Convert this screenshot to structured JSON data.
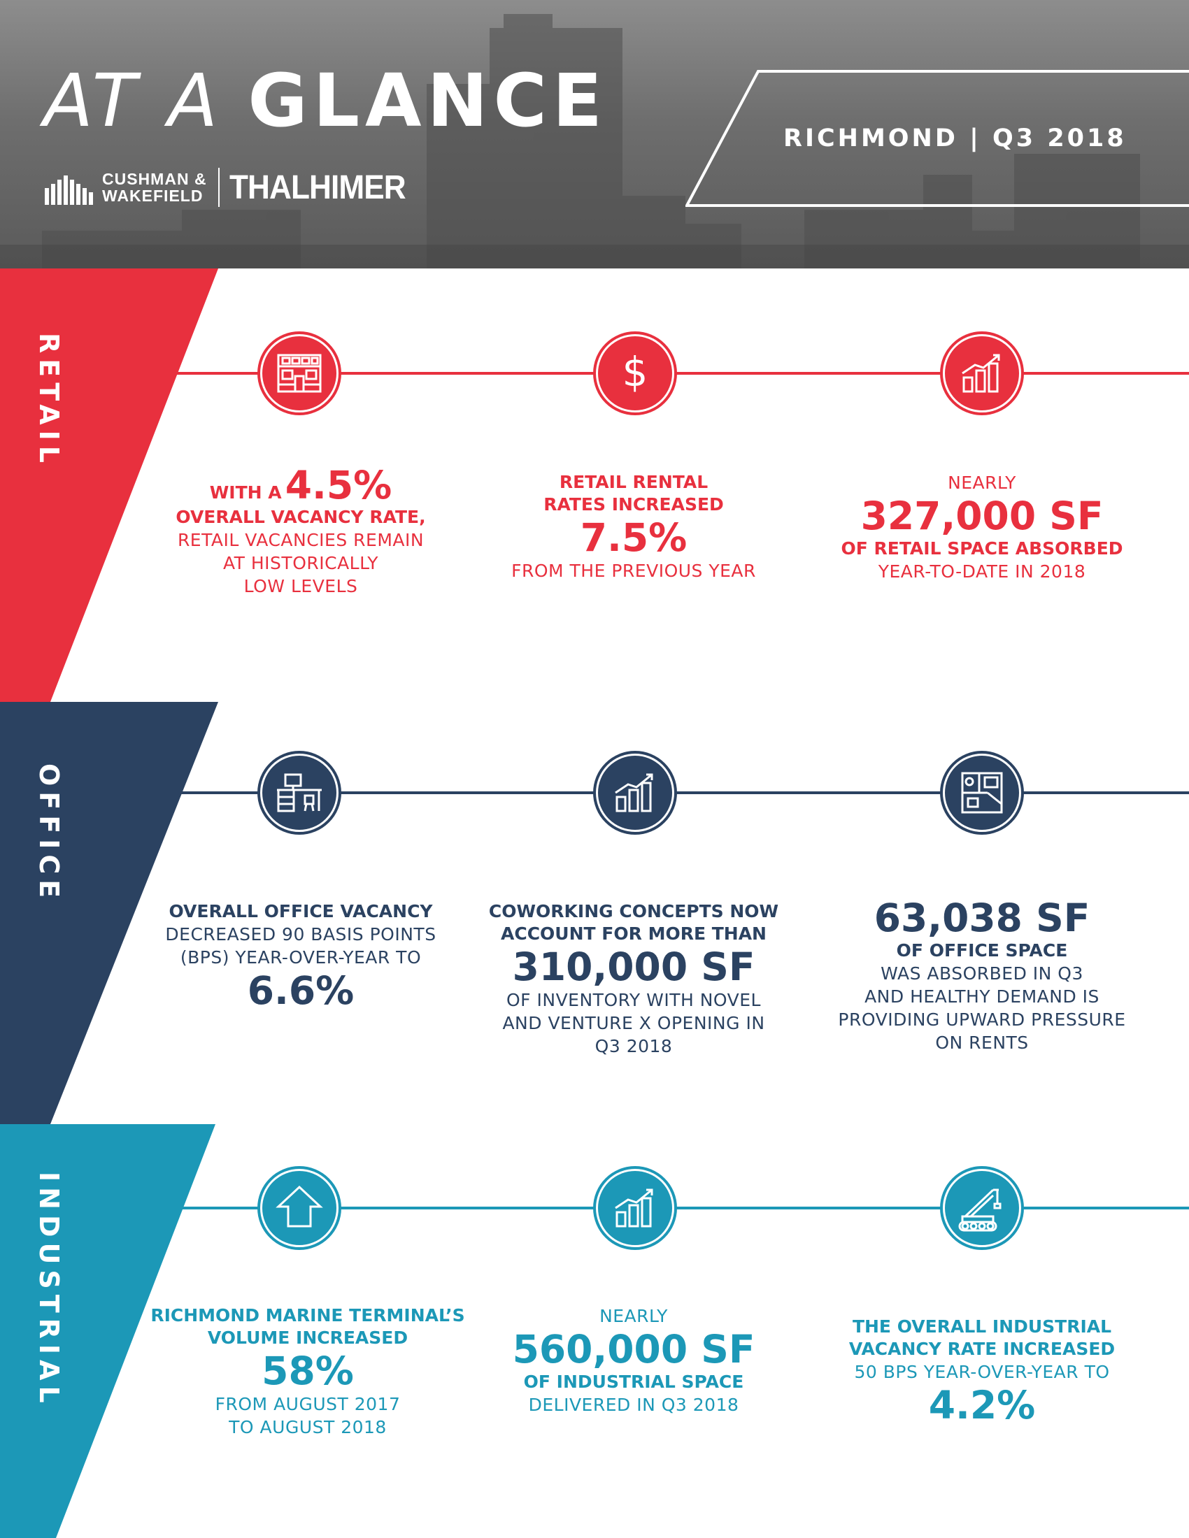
{
  "header": {
    "title_light": "AT A",
    "title_bold": "GLANCE",
    "logo_cw_line1": "CUSHMAN &",
    "logo_cw_line2": "WAKEFIELD",
    "logo_thalhimer": "THALHIMER",
    "location_period": "RICHMOND | Q3 2018"
  },
  "colors": {
    "retail": "#e8303e",
    "office": "#2b4261",
    "industrial": "#1c98b7"
  },
  "retail": {
    "label": "RETAIL",
    "icons": [
      "storefront-icon",
      "dollar-icon",
      "growth-chart-icon"
    ],
    "stat1": {
      "lead": "WITH A",
      "value": "4.5%",
      "bold": "OVERALL VACANCY RATE,",
      "line1": "RETAIL VACANCIES REMAIN",
      "line2": "AT HISTORICALLY",
      "line3": "LOW LEVELS"
    },
    "stat2": {
      "bold1": "RETAIL RENTAL",
      "bold2": "RATES INCREASED",
      "value": "7.5%",
      "line1": "FROM THE PREVIOUS YEAR"
    },
    "stat3": {
      "pre": "NEARLY",
      "value": "327,000 SF",
      "bold": "OF RETAIL SPACE ABSORBED",
      "line1": "YEAR-TO-DATE IN 2018"
    }
  },
  "office": {
    "label": "OFFICE",
    "icons": [
      "office-desk-icon",
      "growth-chart-icon",
      "floor-plan-icon"
    ],
    "stat1": {
      "bold": "OVERALL OFFICE VACANCY",
      "line1": "DECREASED 90 BASIS POINTS",
      "line2": "(BPS) YEAR-OVER-YEAR TO",
      "value": "6.6%"
    },
    "stat2": {
      "bold1": "COWORKING CONCEPTS NOW",
      "bold2": "ACCOUNT FOR MORE THAN",
      "value": "310,000 SF",
      "line1": "OF INVENTORY WITH NOVEL",
      "line2": "AND VENTURE X OPENING IN",
      "line3": "Q3 2018"
    },
    "stat3": {
      "value": "63,038 SF",
      "bold": "OF OFFICE SPACE",
      "line1": "WAS ABSORBED IN Q3",
      "line2": "AND HEALTHY DEMAND IS",
      "line3": "PROVIDING UPWARD PRESSURE",
      "line4": "ON RENTS"
    }
  },
  "industrial": {
    "label": "INDUSTRIAL",
    "icons": [
      "warehouse-arrow-icon",
      "growth-chart-icon",
      "crane-icon"
    ],
    "stat1": {
      "bold1": "RICHMOND MARINE TERMINAL’S",
      "bold2": "VOLUME INCREASED",
      "value": "58%",
      "line1": "FROM AUGUST 2017",
      "line2": "TO AUGUST 2018"
    },
    "stat2": {
      "pre": "NEARLY",
      "value": "560,000 SF",
      "bold": "OF INDUSTRIAL SPACE",
      "line1": "DELIVERED IN Q3 2018"
    },
    "stat3": {
      "bold1": "THE OVERALL INDUSTRIAL",
      "bold2": "VACANCY RATE INCREASED",
      "line1": "50 BPS YEAR-OVER-YEAR TO",
      "value": "4.2%"
    }
  }
}
